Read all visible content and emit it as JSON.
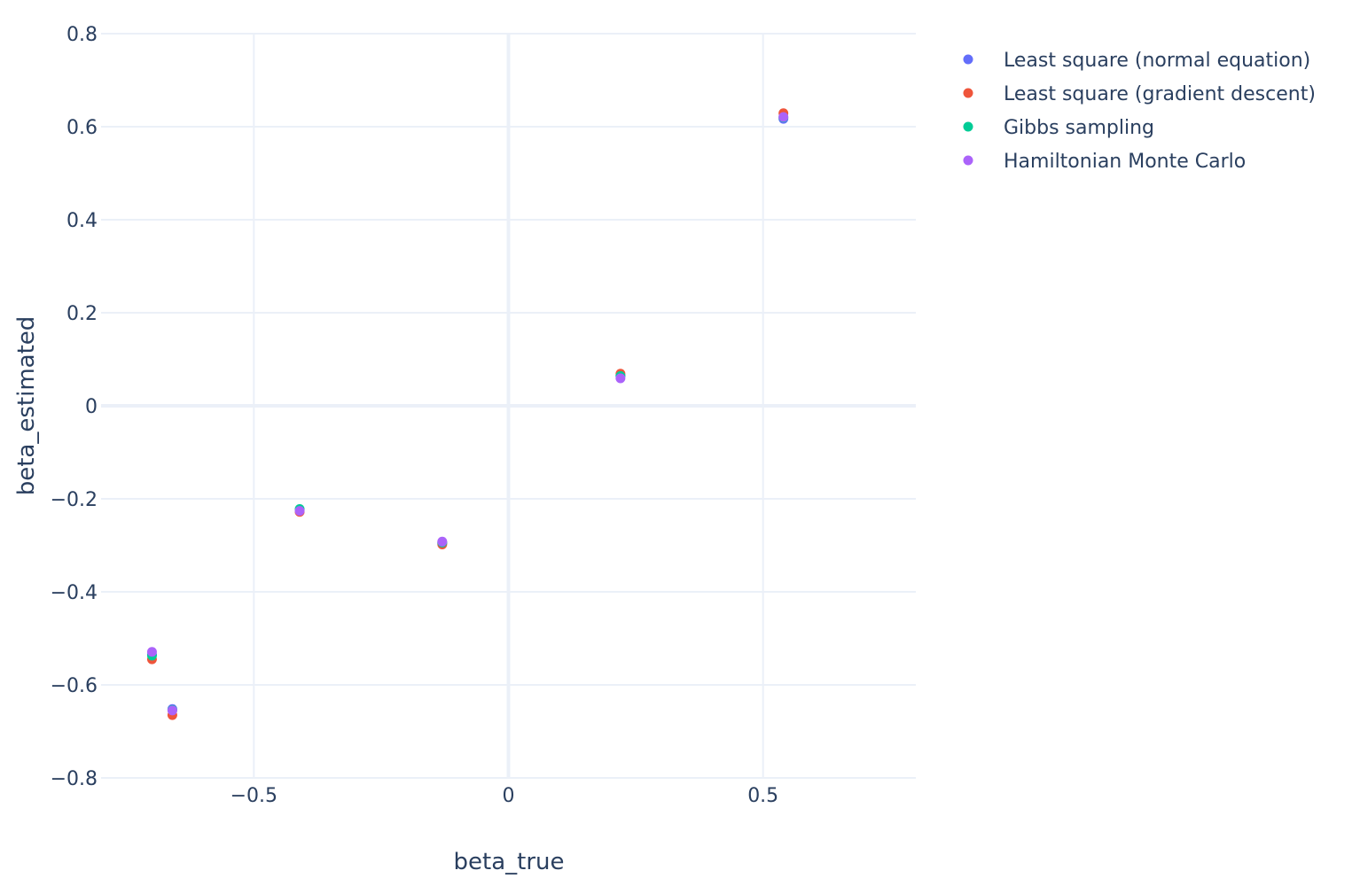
{
  "chart_data": {
    "type": "scatter",
    "xlabel": "beta_true",
    "ylabel": "beta_estimated",
    "xlim": [
      -0.8,
      0.8
    ],
    "ylim": [
      -0.8,
      0.8
    ],
    "x_ticks": [
      {
        "value": -0.5,
        "label": "−0.5"
      },
      {
        "value": 0,
        "label": "0"
      },
      {
        "value": 0.5,
        "label": "0.5"
      }
    ],
    "y_ticks": [
      {
        "value": 0.8,
        "label": "0.8"
      },
      {
        "value": 0.6,
        "label": "0.6"
      },
      {
        "value": 0.4,
        "label": "0.4"
      },
      {
        "value": 0.2,
        "label": "0.2"
      },
      {
        "value": 0,
        "label": "0"
      },
      {
        "value": -0.2,
        "label": "−0.2"
      },
      {
        "value": -0.4,
        "label": "−0.4"
      },
      {
        "value": -0.6,
        "label": "−0.6"
      },
      {
        "value": -0.8,
        "label": "−0.8"
      }
    ],
    "grid": true,
    "legend_position": "top-right",
    "series": [
      {
        "name": "Least square (normal equation)",
        "color": "#636efa",
        "points": [
          {
            "x": -0.7,
            "y": -0.535
          },
          {
            "x": -0.66,
            "y": -0.652
          },
          {
            "x": -0.41,
            "y": -0.225
          },
          {
            "x": -0.13,
            "y": -0.295
          },
          {
            "x": 0.22,
            "y": 0.065
          },
          {
            "x": 0.54,
            "y": 0.617
          }
        ]
      },
      {
        "name": "Least square (gradient descent)",
        "color": "#ef553b",
        "points": [
          {
            "x": -0.7,
            "y": -0.545
          },
          {
            "x": -0.66,
            "y": -0.665
          },
          {
            "x": -0.41,
            "y": -0.228
          },
          {
            "x": -0.13,
            "y": -0.298
          },
          {
            "x": 0.22,
            "y": 0.069
          },
          {
            "x": 0.54,
            "y": 0.629
          }
        ]
      },
      {
        "name": "Gibbs sampling",
        "color": "#00cc96",
        "points": [
          {
            "x": -0.7,
            "y": -0.537
          },
          {
            "x": -0.66,
            "y": -0.654
          },
          {
            "x": -0.41,
            "y": -0.222
          },
          {
            "x": -0.13,
            "y": -0.294
          },
          {
            "x": 0.22,
            "y": 0.064
          },
          {
            "x": 0.54,
            "y": 0.62
          }
        ]
      },
      {
        "name": "Hamiltonian Monte Carlo",
        "color": "#ab63fa",
        "points": [
          {
            "x": -0.7,
            "y": -0.529
          },
          {
            "x": -0.66,
            "y": -0.655
          },
          {
            "x": -0.41,
            "y": -0.226
          },
          {
            "x": -0.13,
            "y": -0.292
          },
          {
            "x": 0.22,
            "y": 0.059
          },
          {
            "x": 0.54,
            "y": 0.621
          }
        ]
      }
    ]
  }
}
